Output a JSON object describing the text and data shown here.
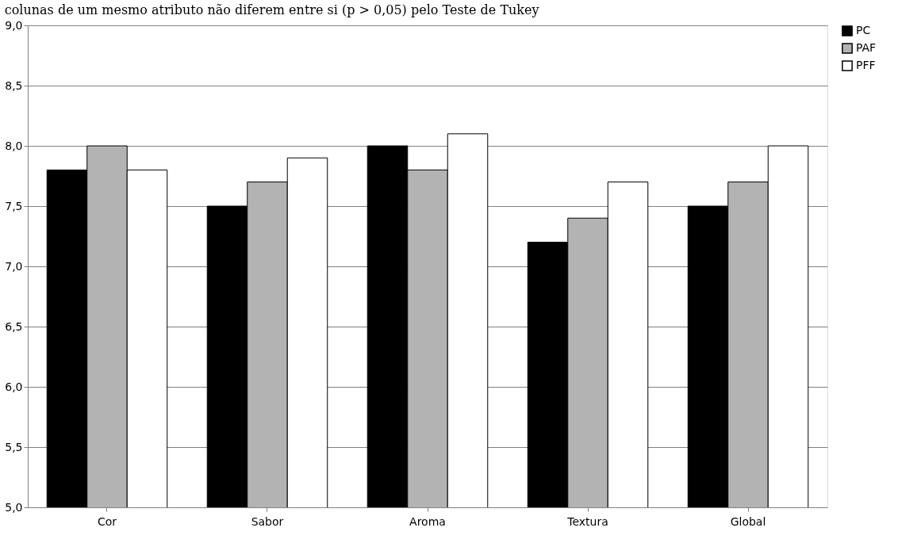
{
  "chart_data": {
    "type": "bar",
    "annotations": [
      "colunas de um mesmo atributo não diferem entre si (p > 0,05) pelo Teste de Tukey"
    ],
    "categories": [
      "Cor",
      "Sabor",
      "Aroma",
      "Textura",
      "Global"
    ],
    "series": [
      {
        "name": "PC",
        "color": "#000000",
        "values": [
          7.8,
          7.5,
          8.0,
          7.2,
          7.5
        ]
      },
      {
        "name": "PAF",
        "color": "#b3b3b3",
        "values": [
          8.0,
          7.7,
          7.8,
          7.4,
          7.7
        ]
      },
      {
        "name": "PFF",
        "color": "#ffffff",
        "values": [
          7.8,
          7.9,
          8.1,
          7.7,
          8.0
        ]
      }
    ],
    "ylim": [
      5.0,
      9.0
    ],
    "yticks": [
      {
        "value": 5.0,
        "label": "5,0"
      },
      {
        "value": 5.5,
        "label": "5,5"
      },
      {
        "value": 6.0,
        "label": "6,0"
      },
      {
        "value": 6.5,
        "label": "6,5"
      },
      {
        "value": 7.0,
        "label": "7,0"
      },
      {
        "value": 7.5,
        "label": "7,5"
      },
      {
        "value": 8.0,
        "label": "8,0"
      },
      {
        "value": 8.5,
        "label": "8,5"
      },
      {
        "value": 9.0,
        "label": "9,0"
      }
    ],
    "grid": "y",
    "legend": "right"
  }
}
